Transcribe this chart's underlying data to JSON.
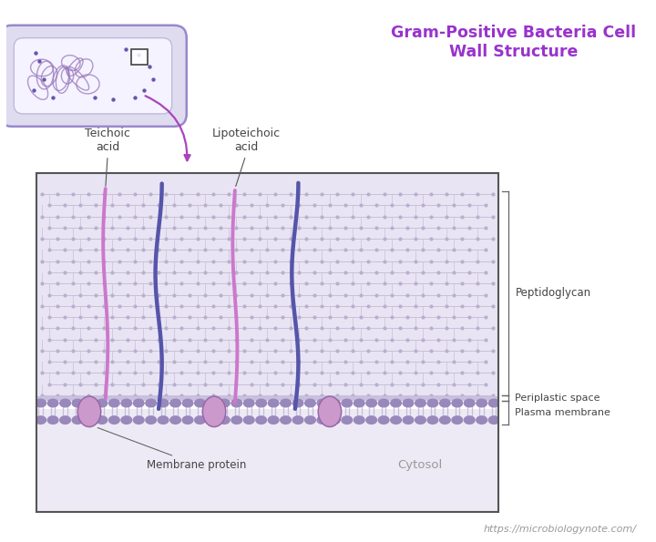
{
  "title": "Gram-Positive Bacteria Cell\nWall Structure",
  "title_color": "#9933CC",
  "bg_color": "#FFFFFF",
  "label_color": "#444444",
  "website": "https://microbiologynote.com/",
  "labels": {
    "teichoic_acid": "Teichoic\nacid",
    "lipoteichoic_acid": "Lipoteichoic\nacid",
    "peptidoglycan": "Peptidoglycan",
    "periplastic_space": "Periplastic space",
    "plasma_membrane": "Plasma membrane",
    "membrane_protein": "Membrane protein",
    "cytosol": "Cytosol"
  },
  "colors": {
    "peptido_bg": "#E8E4F4",
    "peptido_dot": "#B8B0CC",
    "peptido_line": "#C8C0D8",
    "cytosol_bg": "#EDEAF5",
    "peri_bg": "#D0C8E0",
    "membrane_head_top": "#9988BB",
    "membrane_head_bot": "#9988BB",
    "membrane_tail": "#C8C0DC",
    "teichoic_pink": "#CC77CC",
    "teichoic_dark": "#5555AA",
    "protein_fill": "#CC99CC",
    "protein_edge": "#9966AA",
    "bracket_color": "#666666",
    "border_color": "#555555",
    "bact_outer": "#D0CCEE",
    "bact_inner": "#F0EEF8",
    "bact_border": "#9988CC",
    "dna_color": "#9977BB",
    "ribosome_color": "#6655AA",
    "arrow_color": "#AA44BB"
  }
}
